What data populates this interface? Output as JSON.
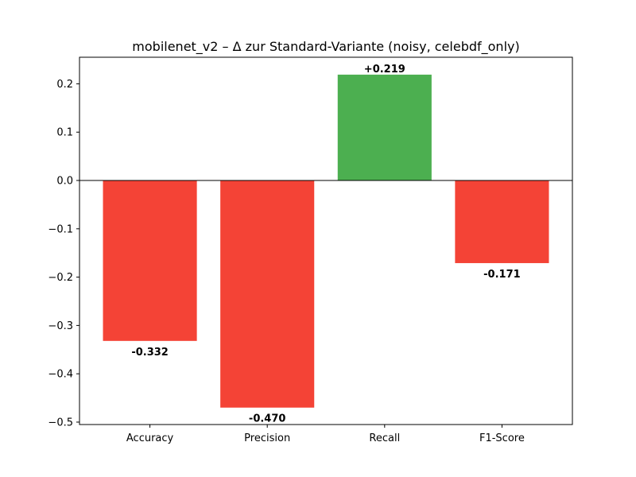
{
  "chart_data": {
    "type": "bar",
    "title": "mobilenet_v2 – Δ zur Standard-Variante (noisy, celebdf_only)",
    "xlabel": "",
    "ylabel": "",
    "categories": [
      "Accuracy",
      "Precision",
      "Recall",
      "F1-Score"
    ],
    "values": [
      -0.332,
      -0.47,
      0.219,
      -0.171
    ],
    "data_labels": [
      "-0.332",
      "-0.470",
      "+0.219",
      "-0.171"
    ],
    "ylim": [
      -0.505,
      0.255
    ],
    "yticks": [
      -0.5,
      -0.4,
      -0.3,
      -0.2,
      -0.1,
      0.0,
      0.1,
      0.2
    ],
    "ytick_labels": [
      "−0.5",
      "−0.4",
      "−0.3",
      "−0.2",
      "−0.1",
      "0.0",
      "0.1",
      "0.2"
    ],
    "grid": false,
    "zero_line": true,
    "colors": {
      "positive": "#4caf50",
      "negative": "#f44336",
      "axis": "#000000"
    }
  }
}
